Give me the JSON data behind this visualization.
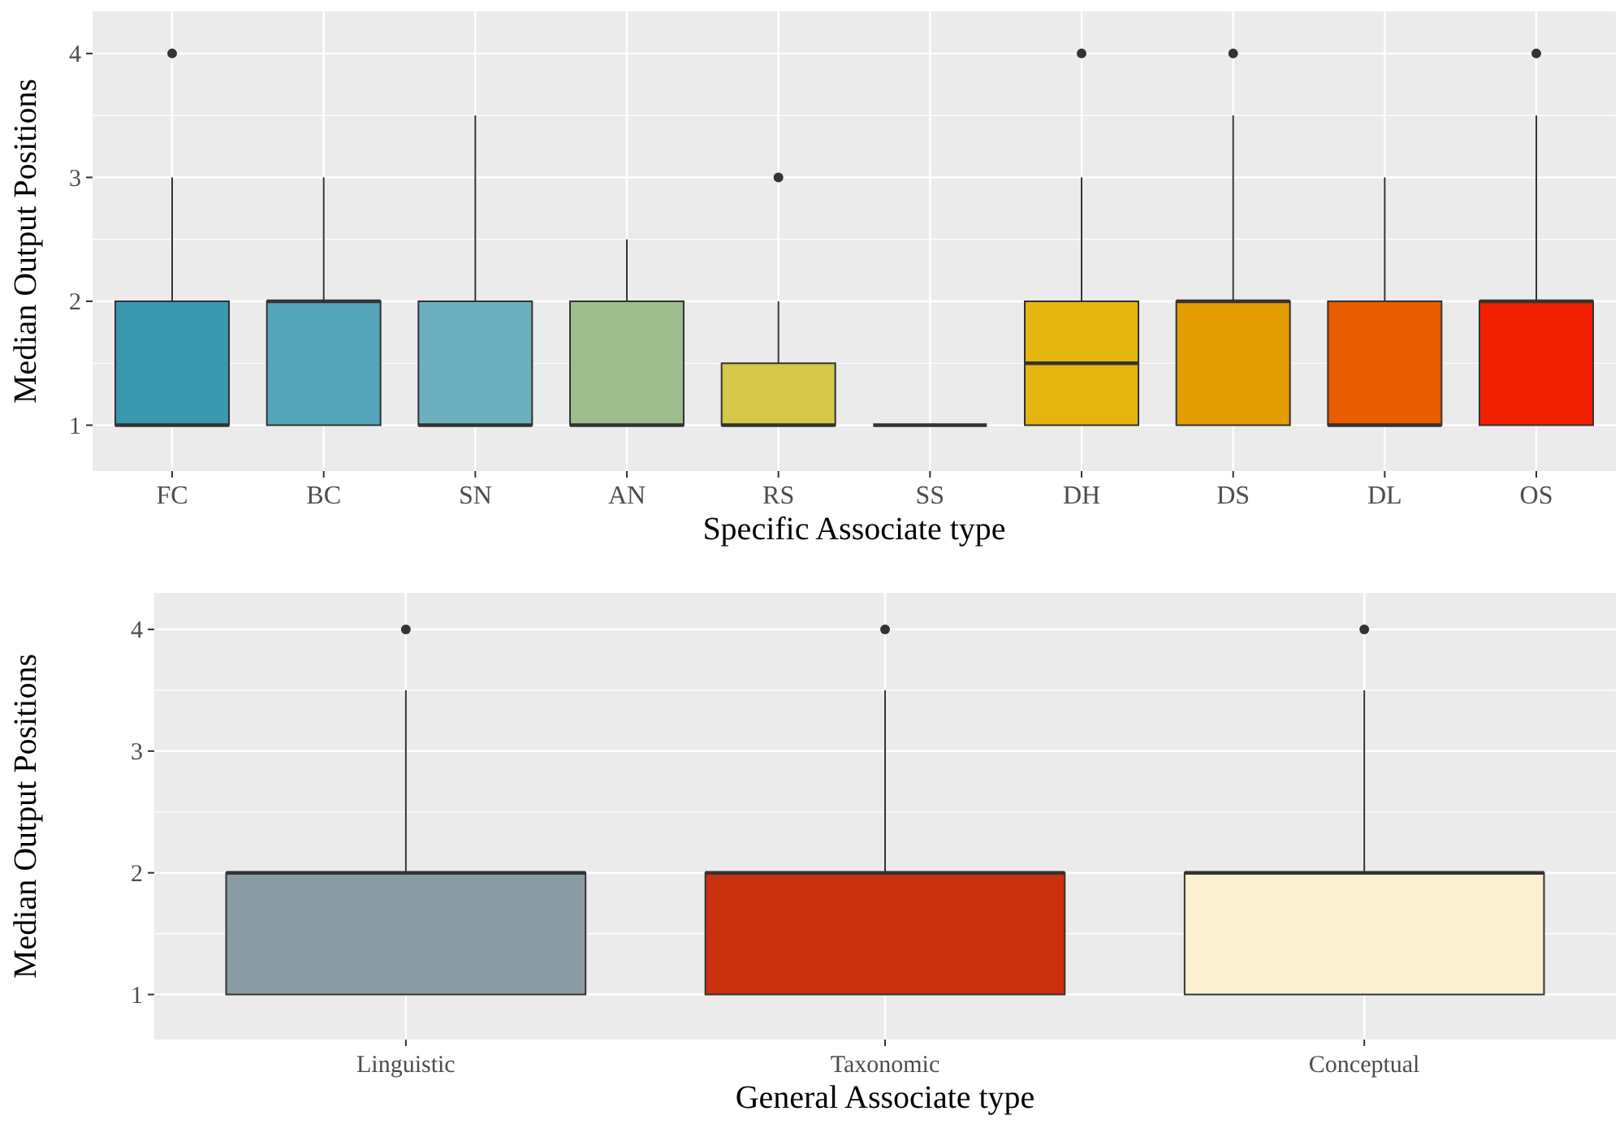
{
  "chart_data": [
    {
      "type": "box",
      "xlabel": "Specific Associate type",
      "ylabel": "Median Output Positions",
      "categories": [
        "FC",
        "BC",
        "SN",
        "AN",
        "RS",
        "SS",
        "DH",
        "DS",
        "DL",
        "OS"
      ],
      "colors": [
        "#3a97b0",
        "#54a5b9",
        "#6cb0c0",
        "#9dbd8c",
        "#d4c74a",
        "#333333",
        "#e3b50e",
        "#e29d00",
        "#e85d00",
        "#f02000"
      ],
      "boxes": [
        {
          "low": 1,
          "q1": 1,
          "median": 1,
          "q3": 2,
          "high": 3,
          "outliers": [
            4
          ]
        },
        {
          "low": 1,
          "q1": 1,
          "median": 2,
          "q3": 2,
          "high": 3
        },
        {
          "low": 1,
          "q1": 1,
          "median": 1,
          "q3": 2,
          "high": 3.5
        },
        {
          "low": 1,
          "q1": 1,
          "median": 1,
          "q3": 2,
          "high": 2.5
        },
        {
          "low": 1,
          "q1": 1,
          "median": 1,
          "q3": 1.5,
          "high": 2,
          "outliers": [
            3
          ]
        },
        {
          "low": 1,
          "q1": 1,
          "median": 1,
          "q3": 1,
          "high": 1
        },
        {
          "low": 1,
          "q1": 1,
          "median": 1.5,
          "q3": 2,
          "high": 3,
          "outliers": [
            4
          ]
        },
        {
          "low": 1,
          "q1": 1,
          "median": 2,
          "q3": 2,
          "high": 3.5,
          "outliers": [
            4
          ]
        },
        {
          "low": 1,
          "q1": 1,
          "median": 1,
          "q3": 2,
          "high": 3
        },
        {
          "low": 1,
          "q1": 1,
          "median": 2,
          "q3": 2,
          "high": 3.5,
          "outliers": [
            4
          ]
        }
      ],
      "ylim": [
        0.63,
        4.34
      ],
      "yticks": [
        1,
        2,
        3,
        4
      ],
      "grid": true
    },
    {
      "type": "box",
      "xlabel": "General Associate type",
      "ylabel": "Median Output Positions",
      "categories": [
        "Linguistic",
        "Taxonomic",
        "Conceptual"
      ],
      "colors": [
        "#8a9ba3",
        "#c8300e",
        "#fbf0d0"
      ],
      "boxes": [
        {
          "low": 1,
          "q1": 1,
          "median": 2,
          "q3": 2,
          "high": 3.5,
          "outliers": [
            4
          ]
        },
        {
          "low": 1,
          "q1": 1,
          "median": 2,
          "q3": 2,
          "high": 3.5,
          "outliers": [
            4
          ]
        },
        {
          "low": 1,
          "q1": 1,
          "median": 2,
          "q3": 2,
          "high": 3.5,
          "outliers": [
            4
          ]
        }
      ],
      "ylim": [
        0.63,
        4.3
      ],
      "yticks": [
        1,
        2,
        3,
        4
      ],
      "grid": true
    }
  ]
}
